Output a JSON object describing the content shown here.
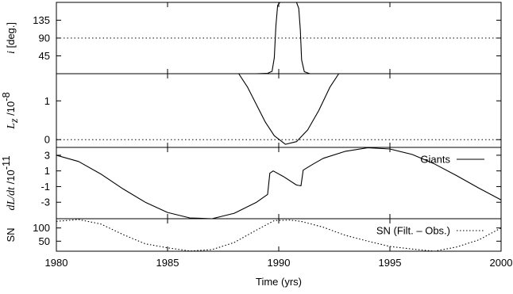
{
  "chart_data": [
    {
      "type": "line",
      "ylabel_var": "i",
      "ylabel_unit": "[deg.]",
      "ylim": [
        0,
        180
      ],
      "yticks": [
        "45",
        "90",
        "135"
      ],
      "xlim": [
        1980,
        2000
      ],
      "reference_line": {
        "y": 90,
        "style": "dotted"
      },
      "series": [
        {
          "points": [
            [
              1980,
              0
            ],
            [
              1989,
              0
            ],
            [
              1989.5,
              1
            ],
            [
              1989.7,
              6
            ],
            [
              1989.8,
              40
            ],
            [
              1989.87,
              120
            ],
            [
              1989.95,
              172
            ],
            [
              1990.05,
              180
            ],
            [
              1990.8,
              180
            ],
            [
              1990.9,
              165
            ],
            [
              1990.97,
              110
            ],
            [
              1991.03,
              35
            ],
            [
              1991.15,
              5
            ],
            [
              1991.4,
              0
            ],
            [
              2000,
              0
            ]
          ]
        }
      ]
    },
    {
      "type": "line",
      "ylabel_var": "L",
      "ylabel_sub": "z",
      "ylabel_unit": "/10",
      "ylabel_exp": "-8",
      "ylim": [
        -0.2,
        1.7
      ],
      "yticks": [
        "0",
        "1"
      ],
      "xlim": [
        1980,
        2000
      ],
      "reference_line": {
        "y": 0,
        "style": "dotted"
      },
      "series": [
        {
          "points": [
            [
              1988.2,
              1.7
            ],
            [
              1988.6,
              1.35
            ],
            [
              1989.0,
              0.9
            ],
            [
              1989.4,
              0.45
            ],
            [
              1989.8,
              0.1
            ],
            [
              1990.3,
              -0.12
            ],
            [
              1990.8,
              -0.05
            ],
            [
              1991.3,
              0.25
            ],
            [
              1991.8,
              0.75
            ],
            [
              1992.3,
              1.35
            ],
            [
              1992.7,
              1.7
            ]
          ]
        }
      ]
    },
    {
      "type": "line",
      "ylabel_var": "dL/dt",
      "ylabel_unit": "/10",
      "ylabel_exp": "-11",
      "ylim": [
        -5.1,
        4.0
      ],
      "yticks": [
        "-3",
        "-1",
        "1",
        "3"
      ],
      "xlim": [
        1980,
        2000
      ],
      "legend": {
        "position": "top-right",
        "entries": [
          "Giants"
        ]
      },
      "series": [
        {
          "name": "Giants",
          "points": [
            [
              1980,
              3.0
            ],
            [
              1981,
              2.2
            ],
            [
              1982,
              0.6
            ],
            [
              1983,
              -1.3
            ],
            [
              1984,
              -3.0
            ],
            [
              1985,
              -4.3
            ],
            [
              1986,
              -5.0
            ],
            [
              1987,
              -5.1
            ],
            [
              1988,
              -4.4
            ],
            [
              1989,
              -3.0
            ],
            [
              1989.5,
              -2.0
            ],
            [
              1989.6,
              0.7
            ],
            [
              1989.75,
              1.0
            ],
            [
              1990.2,
              0.3
            ],
            [
              1990.8,
              -0.8
            ],
            [
              1991.0,
              -0.9
            ],
            [
              1991.1,
              1.1
            ],
            [
              1991.5,
              1.8
            ],
            [
              1992,
              2.6
            ],
            [
              1993,
              3.5
            ],
            [
              1994,
              3.95
            ],
            [
              1995,
              3.8
            ],
            [
              1996,
              3.1
            ],
            [
              1997,
              1.9
            ],
            [
              1998,
              0.4
            ],
            [
              1999,
              -1.2
            ],
            [
              2000,
              -2.7
            ]
          ]
        }
      ]
    },
    {
      "type": "line",
      "ylabel_var": "SN",
      "ylim": [
        12,
        135
      ],
      "yticks": [
        "50",
        "100"
      ],
      "xlim": [
        1980,
        2000
      ],
      "xticks": [
        "1980",
        "1985",
        "1990",
        "1995",
        "2000"
      ],
      "xlabel": "Time (yrs)",
      "legend": {
        "position": "top-right",
        "entries": [
          "SN (Filt. – Obs.)"
        ]
      },
      "series": [
        {
          "name": "SN (Filt. – Obs.)",
          "style": "dotted",
          "points": [
            [
              1980,
              125
            ],
            [
              1981,
              132
            ],
            [
              1982,
              115
            ],
            [
              1983,
              75
            ],
            [
              1984,
              40
            ],
            [
              1985,
              25
            ],
            [
              1986,
              13
            ],
            [
              1987,
              18
            ],
            [
              1988,
              45
            ],
            [
              1989,
              92
            ],
            [
              1989.8,
              128
            ],
            [
              1990.5,
              130
            ],
            [
              1991,
              125
            ],
            [
              1992,
              103
            ],
            [
              1993,
              72
            ],
            [
              1994,
              50
            ],
            [
              1995,
              30
            ],
            [
              1996,
              20
            ],
            [
              1997,
              12
            ],
            [
              1998,
              28
            ],
            [
              1999,
              55
            ],
            [
              2000,
              100
            ]
          ]
        }
      ]
    }
  ]
}
